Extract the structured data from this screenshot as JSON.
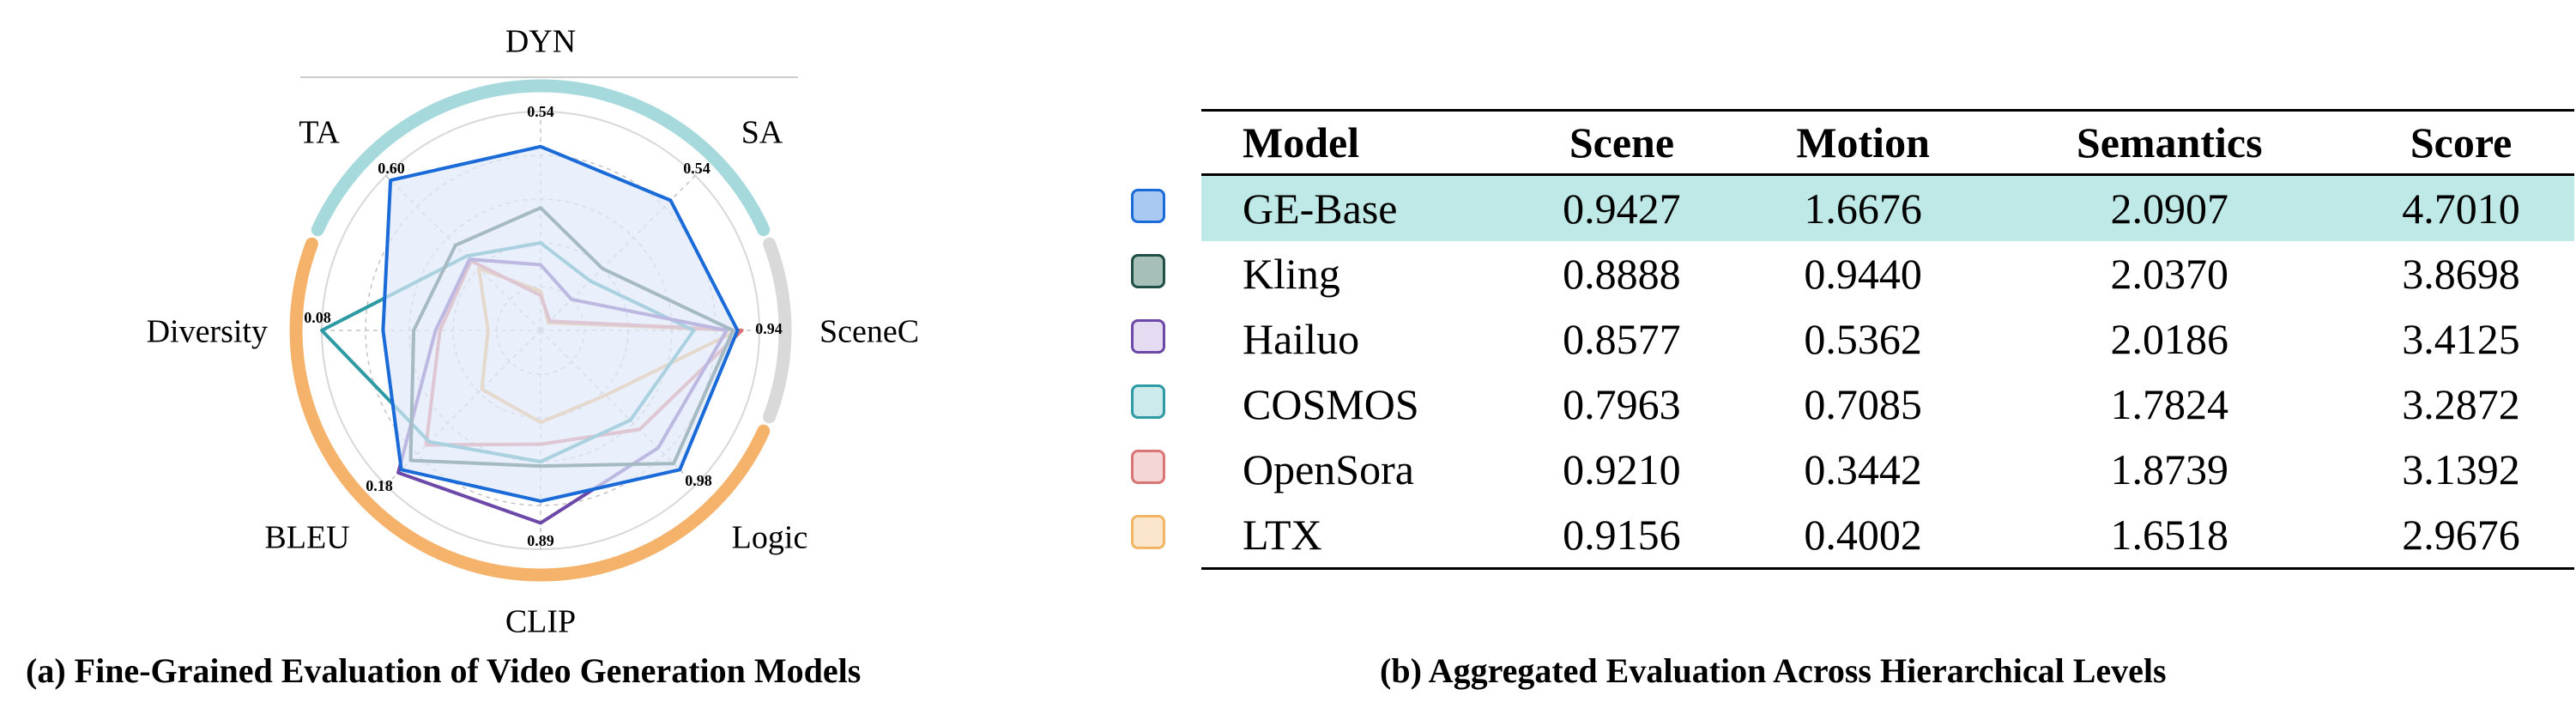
{
  "chart_data": [
    {
      "type": "radar",
      "axes": [
        "DYN",
        "SA",
        "SceneC",
        "Logic",
        "CLIP",
        "BLEU",
        "Diversity",
        "TA"
      ],
      "axis_max_labels": [
        "0.54",
        "0.54",
        "0.94",
        "0.98",
        "0.89",
        "0.18",
        "0.08",
        "0.60"
      ],
      "radial_grid_rings": 4,
      "level_arcs": [
        {
          "axes": [
            "TA",
            "DYN",
            "SA"
          ],
          "color": "#a6d9dc"
        },
        {
          "axes": [
            "SceneC"
          ],
          "color": "#d9d9d9"
        },
        {
          "axes": [
            "Logic",
            "CLIP",
            "BLEU",
            "Diversity"
          ],
          "color": "#f5b26b"
        }
      ],
      "series": [
        {
          "name": "GE-Base",
          "color": "#1a6bd8",
          "fill": "#dfe8fa",
          "values": [
            0.84,
            0.84,
            0.9,
            0.9,
            0.78,
            0.9,
            0.72,
            0.97
          ]
        },
        {
          "name": "Kling",
          "color": "#1f4f47",
          "fill": "none",
          "values": [
            0.56,
            0.4,
            0.88,
            0.86,
            0.62,
            0.84,
            0.58,
            0.55
          ]
        },
        {
          "name": "Hailuo",
          "color": "#6c49a8",
          "fill": "none",
          "values": [
            0.3,
            0.2,
            0.85,
            0.76,
            0.88,
            0.92,
            0.48,
            0.46
          ]
        },
        {
          "name": "COSMOS",
          "color": "#2e9aa3",
          "fill": "none",
          "values": [
            0.4,
            0.32,
            0.7,
            0.58,
            0.6,
            0.72,
            1.0,
            0.48
          ]
        },
        {
          "name": "OpenSora",
          "color": "#d97575",
          "fill": "none",
          "values": [
            0.16,
            0.06,
            0.92,
            0.64,
            0.52,
            0.74,
            0.46,
            0.45
          ]
        },
        {
          "name": "LTX",
          "color": "#f0b565",
          "fill": "none",
          "values": [
            0.18,
            0.05,
            0.9,
            0.42,
            0.42,
            0.38,
            0.24,
            0.4
          ]
        }
      ]
    },
    {
      "type": "table",
      "columns": [
        "Model",
        "Scene",
        "Motion",
        "Semantics",
        "Score"
      ],
      "rows": [
        {
          "model": "GE-Base",
          "scene": "0.9427",
          "motion": "1.6676",
          "semantics": "2.0907",
          "score": "4.7010",
          "swatch_fill": "#a9c8f2",
          "swatch_border": "#1a6bd8",
          "highlight": true
        },
        {
          "model": "Kling",
          "scene": "0.8888",
          "motion": "0.9440",
          "semantics": "2.0370",
          "score": "3.8698",
          "swatch_fill": "#a6bfb9",
          "swatch_border": "#1f4f47",
          "highlight": false
        },
        {
          "model": "Hailuo",
          "scene": "0.8577",
          "motion": "0.5362",
          "semantics": "2.0186",
          "score": "3.4125",
          "swatch_fill": "#e6dcf2",
          "swatch_border": "#6c49a8",
          "highlight": false
        },
        {
          "model": "COSMOS",
          "scene": "0.7963",
          "motion": "0.7085",
          "semantics": "1.7824",
          "score": "3.2872",
          "swatch_fill": "#cce9ec",
          "swatch_border": "#2e9aa3",
          "highlight": false
        },
        {
          "model": "OpenSora",
          "scene": "0.9210",
          "motion": "0.3442",
          "semantics": "1.8739",
          "score": "3.1392",
          "swatch_fill": "#f5d6d6",
          "swatch_border": "#d97575",
          "highlight": false
        },
        {
          "model": "LTX",
          "scene": "0.9156",
          "motion": "0.4002",
          "semantics": "1.6518",
          "score": "2.9676",
          "swatch_fill": "#fbe6cc",
          "swatch_border": "#f0b565",
          "highlight": false
        }
      ]
    }
  ],
  "captions": {
    "a": "(a) Fine-Grained Evaluation of Video Generation Models",
    "b": "(b) Aggregated Evaluation Across Hierarchical Levels"
  }
}
